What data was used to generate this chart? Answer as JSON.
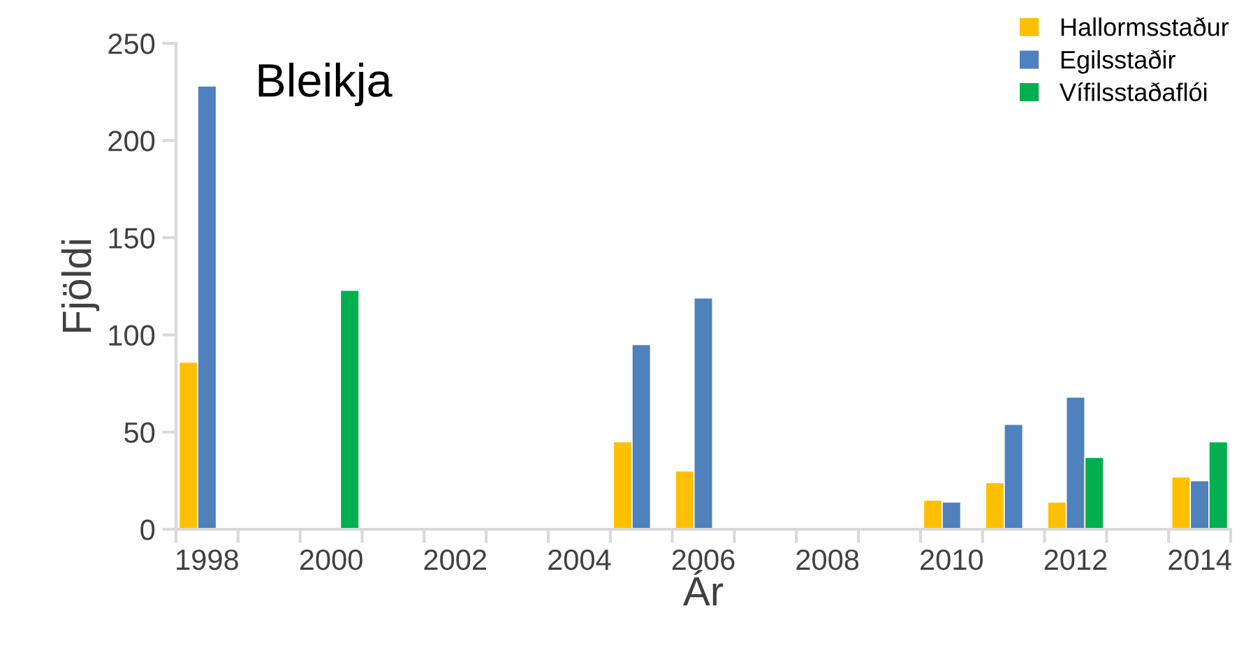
{
  "chart_data": {
    "type": "bar",
    "title": "Bleikja",
    "xlabel": "Ár",
    "ylabel": "Fjöldi",
    "categories": [
      "1998",
      null,
      "2000",
      null,
      "2002",
      null,
      "2004",
      null,
      "2006",
      null,
      "2008",
      null,
      "2010",
      null,
      "2012",
      null,
      "2014"
    ],
    "series": [
      {
        "name": "Hallormsstaður",
        "color": "#ffc000",
        "values": [
          86,
          null,
          null,
          null,
          null,
          null,
          null,
          45,
          30,
          null,
          null,
          null,
          15,
          24,
          14,
          null,
          27
        ]
      },
      {
        "name": "Egilsstaðir",
        "color": "#4f81bd",
        "values": [
          228,
          null,
          null,
          null,
          null,
          null,
          null,
          95,
          119,
          null,
          null,
          null,
          14,
          54,
          68,
          null,
          25
        ]
      },
      {
        "name": "Vífilsstaðaflói",
        "color": "#00b050",
        "values": [
          null,
          null,
          123,
          null,
          null,
          null,
          null,
          null,
          null,
          null,
          null,
          null,
          null,
          null,
          37,
          null,
          45
        ]
      }
    ],
    "ylim": [
      0,
      250
    ],
    "yticks": [
      0,
      50,
      100,
      150,
      200,
      250
    ],
    "grid": false,
    "legend": "top right"
  }
}
